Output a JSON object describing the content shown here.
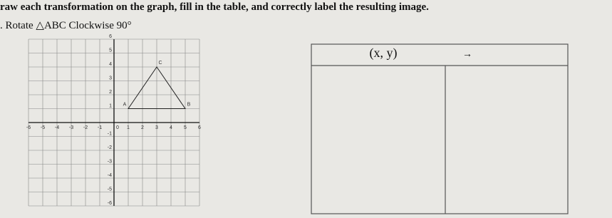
{
  "header": {
    "instruction": "raw each transformation on the graph, fill in the table, and correctly label the resulting image.",
    "problem": ". Rotate △ABC Clockwise 90°"
  },
  "graph": {
    "x_labels": [
      -6,
      -5,
      -4,
      -3,
      -2,
      -1,
      0,
      1,
      2,
      3,
      4,
      5,
      6
    ],
    "y_labels": [
      6,
      5,
      4,
      3,
      2,
      1,
      -1,
      -2,
      -3,
      -4,
      -5,
      -6
    ],
    "points": [
      {
        "label": "A",
        "x": 1,
        "y": 1
      },
      {
        "label": "B",
        "x": 5,
        "y": 1
      },
      {
        "label": "C",
        "x": 3,
        "y": 4
      }
    ]
  },
  "table": {
    "header": [
      "(x, y)",
      "→"
    ]
  }
}
